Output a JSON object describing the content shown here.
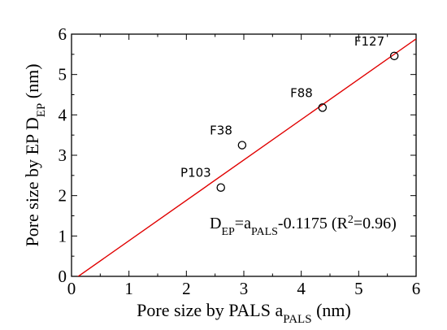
{
  "chart_data": {
    "type": "scatter",
    "xlabel": {
      "main": "Pore size by PALS a",
      "sub": "PALS",
      "unit": " (nm)"
    },
    "ylabel": {
      "main": "Pore size by EP D",
      "sub": "EP",
      "unit": " (nm)"
    },
    "xlim": [
      0,
      6
    ],
    "ylim": [
      0,
      6
    ],
    "x_ticks": [
      "0",
      "1",
      "2",
      "3",
      "4",
      "5",
      "6"
    ],
    "y_ticks": [
      "0",
      "1",
      "2",
      "3",
      "4",
      "5",
      "6"
    ],
    "grid": false,
    "points": [
      {
        "label": "P103",
        "x": 2.6,
        "y": 2.2
      },
      {
        "label": "F38",
        "x": 2.97,
        "y": 3.25
      },
      {
        "label": "F88",
        "x": 4.37,
        "y": 4.18
      },
      {
        "label": "F127",
        "x": 5.62,
        "y": 5.46
      }
    ],
    "fit": {
      "slope": 1,
      "intercept": -0.1175,
      "color": "#e00000",
      "equation": {
        "lhs": "D",
        "lhs_sub": "EP",
        "eq": "=a",
        "rhs_sub": "PALS",
        "rhs_tail": "-0.1175 (R",
        "sup": "2",
        "end": "=0.96)"
      }
    },
    "marker_color": "#000000"
  }
}
